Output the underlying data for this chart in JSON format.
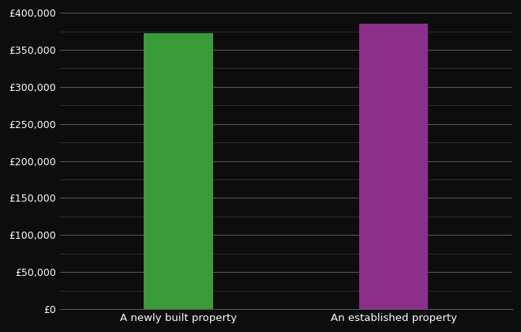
{
  "categories": [
    "A newly built property",
    "An established property"
  ],
  "values": [
    372000,
    385000
  ],
  "bar_colors": [
    "#3a9a3a",
    "#8b2f8b"
  ],
  "background_color": "#0d0d0d",
  "text_color": "#ffffff",
  "grid_color": "#555555",
  "minor_grid_color": "#333333",
  "ylim": [
    0,
    400000
  ],
  "ytick_step": 50000,
  "ytick_minor_step": 25000,
  "bar_width": 0.32,
  "figsize": [
    6.6,
    4.2
  ],
  "dpi": 100,
  "xlabel_fontsize": 9.5,
  "tick_fontsize": 9
}
